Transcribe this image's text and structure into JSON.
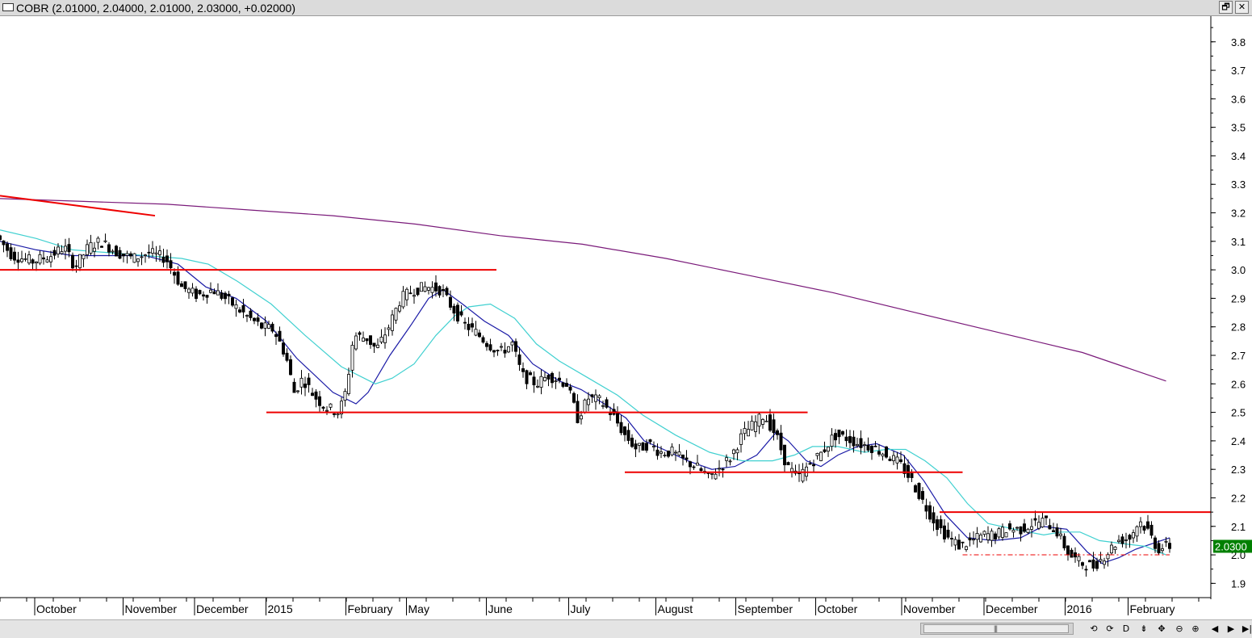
{
  "window": {
    "title": "COBR (2.01000, 2.04000, 2.01000, 2.03000, +0.02000)",
    "restore_icon": "restore-icon",
    "close_icon": "close-icon",
    "restore_glyph": "🗗",
    "close_glyph": "✕"
  },
  "colors": {
    "up_fill": "#ffffff",
    "down_fill": "#000000",
    "candle_stroke": "#000000",
    "ma_short": "#1a1aa6",
    "ma_medium": "#40d0d0",
    "ma_long": "#7a1a7a",
    "trendline": "#ee0000",
    "last_price_bg": "#008000",
    "last_price_text": "#ffffff"
  },
  "scrollbar": {
    "buttons": [
      {
        "name": "prev-page-button",
        "glyph": "⟲"
      },
      {
        "name": "next-page-button",
        "glyph": "⟳"
      },
      {
        "name": "daily-button",
        "glyph": "D"
      },
      {
        "name": "cursor-button",
        "glyph": "⇟"
      },
      {
        "name": "pan-button",
        "glyph": "✥"
      },
      {
        "name": "zoom-out-button",
        "glyph": "⊖"
      },
      {
        "name": "zoom-in-button",
        "glyph": "⊕"
      },
      {
        "name": "scroll-left-button",
        "glyph": "◀"
      },
      {
        "name": "scroll-right-button",
        "glyph": "▶"
      },
      {
        "name": "scroll-end-button",
        "glyph": "▶|"
      }
    ],
    "thumb_grip": "|||"
  },
  "chart_data": {
    "type": "candlestick",
    "symbol": "COBR",
    "ylim": [
      1.85,
      3.89
    ],
    "x_range": [
      0,
      100
    ],
    "y_ticks": [
      1.9,
      2.0,
      2.1,
      2.2,
      2.3,
      2.4,
      2.5,
      2.6,
      2.7,
      2.8,
      2.9,
      3.0,
      3.1,
      3.2,
      3.3,
      3.4,
      3.5,
      3.6,
      3.7,
      3.8
    ],
    "last_price": {
      "label": "2.0300",
      "value": 2.03
    },
    "x_labels": [
      {
        "label": "October",
        "x": 3.0
      },
      {
        "label": "November",
        "x": 10.3
      },
      {
        "label": "December",
        "x": 16.2
      },
      {
        "label": "2015",
        "x": 22.1
      },
      {
        "label": "February",
        "x": 28.7
      },
      {
        "label": "May",
        "x": 33.7
      },
      {
        "label": "June",
        "x": 40.3
      },
      {
        "label": "July",
        "x": 47.1
      },
      {
        "label": "August",
        "x": 54.3
      },
      {
        "label": "September",
        "x": 60.9
      },
      {
        "label": "October",
        "x": 67.5
      },
      {
        "label": "November",
        "x": 74.6
      },
      {
        "label": "December",
        "x": 81.4
      },
      {
        "label": "2016",
        "x": 88.1
      },
      {
        "label": "February",
        "x": 93.3
      }
    ],
    "price_anchors": [
      [
        0,
        3.12
      ],
      [
        1.3,
        3.05
      ],
      [
        3.0,
        3.03
      ],
      [
        4.5,
        3.05
      ],
      [
        5.6,
        3.08
      ],
      [
        6.5,
        3.01
      ],
      [
        7.6,
        3.08
      ],
      [
        8.6,
        3.1
      ],
      [
        10.0,
        3.06
      ],
      [
        11.3,
        3.04
      ],
      [
        12.6,
        3.06
      ],
      [
        14.0,
        3.04
      ],
      [
        15.3,
        2.94
      ],
      [
        16.6,
        2.91
      ],
      [
        17.9,
        2.93
      ],
      [
        19.2,
        2.89
      ],
      [
        20.6,
        2.84
      ],
      [
        21.9,
        2.8
      ],
      [
        22.9,
        2.79
      ],
      [
        23.9,
        2.7
      ],
      [
        24.6,
        2.57
      ],
      [
        25.3,
        2.62
      ],
      [
        26.2,
        2.56
      ],
      [
        27.1,
        2.52
      ],
      [
        28.3,
        2.5
      ],
      [
        28.9,
        2.58
      ],
      [
        29.5,
        2.77
      ],
      [
        30.6,
        2.76
      ],
      [
        31.4,
        2.72
      ],
      [
        32.4,
        2.8
      ],
      [
        33.4,
        2.9
      ],
      [
        34.5,
        2.93
      ],
      [
        35.6,
        2.94
      ],
      [
        36.7,
        2.93
      ],
      [
        37.6,
        2.87
      ],
      [
        38.6,
        2.81
      ],
      [
        39.6,
        2.78
      ],
      [
        40.6,
        2.74
      ],
      [
        41.6,
        2.71
      ],
      [
        42.6,
        2.74
      ],
      [
        43.4,
        2.63
      ],
      [
        44.6,
        2.6
      ],
      [
        45.6,
        2.63
      ],
      [
        47.1,
        2.6
      ],
      [
        48.0,
        2.48
      ],
      [
        48.9,
        2.55
      ],
      [
        49.9,
        2.54
      ],
      [
        50.9,
        2.49
      ],
      [
        51.9,
        2.42
      ],
      [
        52.9,
        2.37
      ],
      [
        53.9,
        2.39
      ],
      [
        54.8,
        2.36
      ],
      [
        55.8,
        2.36
      ],
      [
        56.8,
        2.33
      ],
      [
        57.8,
        2.31
      ],
      [
        58.8,
        2.27
      ],
      [
        59.6,
        2.3
      ],
      [
        60.6,
        2.34
      ],
      [
        61.6,
        2.42
      ],
      [
        62.6,
        2.46
      ],
      [
        63.4,
        2.49
      ],
      [
        64.4,
        2.42
      ],
      [
        65.3,
        2.31
      ],
      [
        66.2,
        2.27
      ],
      [
        67.2,
        2.32
      ],
      [
        68.2,
        2.36
      ],
      [
        69.2,
        2.42
      ],
      [
        70.2,
        2.41
      ],
      [
        71.2,
        2.39
      ],
      [
        72.2,
        2.38
      ],
      [
        73.2,
        2.36
      ],
      [
        74.6,
        2.32
      ],
      [
        75.6,
        2.26
      ],
      [
        76.6,
        2.18
      ],
      [
        77.6,
        2.11
      ],
      [
        78.6,
        2.06
      ],
      [
        79.6,
        2.03
      ],
      [
        80.6,
        2.05
      ],
      [
        81.6,
        2.07
      ],
      [
        82.6,
        2.07
      ],
      [
        83.4,
        2.09
      ],
      [
        84.6,
        2.09
      ],
      [
        85.6,
        2.11
      ],
      [
        86.6,
        2.12
      ],
      [
        87.6,
        2.08
      ],
      [
        88.6,
        2.0
      ],
      [
        89.6,
        1.97
      ],
      [
        90.6,
        1.96
      ],
      [
        91.6,
        2.0
      ],
      [
        92.6,
        2.05
      ],
      [
        93.6,
        2.06
      ],
      [
        94.4,
        2.12
      ],
      [
        95.2,
        2.08
      ],
      [
        95.9,
        2.02
      ],
      [
        96.6,
        2.03
      ]
    ],
    "moving_averages": [
      {
        "key": "ma_short",
        "color": "#1a1aa6",
        "points": [
          [
            0,
            3.1
          ],
          [
            3,
            3.07
          ],
          [
            6,
            3.05
          ],
          [
            9,
            3.05
          ],
          [
            12,
            3.05
          ],
          [
            14.7,
            3.02
          ],
          [
            17,
            2.94
          ],
          [
            19.5,
            2.9
          ],
          [
            22,
            2.82
          ],
          [
            24.5,
            2.69
          ],
          [
            27.5,
            2.57
          ],
          [
            29.4,
            2.53
          ],
          [
            30.4,
            2.57
          ],
          [
            32.2,
            2.7
          ],
          [
            34,
            2.81
          ],
          [
            35.4,
            2.9
          ],
          [
            36.6,
            2.93
          ],
          [
            38.2,
            2.88
          ],
          [
            40,
            2.82
          ],
          [
            42,
            2.77
          ],
          [
            44,
            2.67
          ],
          [
            46.2,
            2.61
          ],
          [
            48,
            2.58
          ],
          [
            49.9,
            2.53
          ],
          [
            51.7,
            2.48
          ],
          [
            53.2,
            2.4
          ],
          [
            54.8,
            2.37
          ],
          [
            56.8,
            2.33
          ],
          [
            58.8,
            2.3
          ],
          [
            60.7,
            2.31
          ],
          [
            62.5,
            2.35
          ],
          [
            64.1,
            2.43
          ],
          [
            65.1,
            2.4
          ],
          [
            66.6,
            2.33
          ],
          [
            67.8,
            2.31
          ],
          [
            69.2,
            2.35
          ],
          [
            70.8,
            2.38
          ],
          [
            72.4,
            2.39
          ],
          [
            74.6,
            2.35
          ],
          [
            76.3,
            2.26
          ],
          [
            78.1,
            2.14
          ],
          [
            79.9,
            2.06
          ],
          [
            82.1,
            2.05
          ],
          [
            84.3,
            2.06
          ],
          [
            86.1,
            2.1
          ],
          [
            88.1,
            2.09
          ],
          [
            89.8,
            2.01
          ],
          [
            91.0,
            1.97
          ],
          [
            92.4,
            1.99
          ],
          [
            93.8,
            2.02
          ],
          [
            95.2,
            2.04
          ],
          [
            96.6,
            2.06
          ]
        ]
      },
      {
        "key": "ma_medium",
        "color": "#40d0d0",
        "points": [
          [
            0,
            3.14
          ],
          [
            3,
            3.11
          ],
          [
            6,
            3.07
          ],
          [
            9,
            3.06
          ],
          [
            12,
            3.05
          ],
          [
            15,
            3.04
          ],
          [
            17.2,
            3.02
          ],
          [
            19.6,
            2.96
          ],
          [
            22.4,
            2.88
          ],
          [
            25.2,
            2.77
          ],
          [
            28.2,
            2.66
          ],
          [
            31,
            2.6
          ],
          [
            32.4,
            2.62
          ],
          [
            34.2,
            2.67
          ],
          [
            36,
            2.77
          ],
          [
            37.6,
            2.84
          ],
          [
            38.7,
            2.87
          ],
          [
            40.5,
            2.88
          ],
          [
            42.5,
            2.83
          ],
          [
            44.3,
            2.74
          ],
          [
            46.2,
            2.68
          ],
          [
            48.6,
            2.62
          ],
          [
            51,
            2.56
          ],
          [
            53.1,
            2.49
          ],
          [
            55.8,
            2.42
          ],
          [
            58.6,
            2.36
          ],
          [
            61.3,
            2.33
          ],
          [
            63.8,
            2.33
          ],
          [
            65.6,
            2.35
          ],
          [
            67.1,
            2.38
          ],
          [
            69.2,
            2.38
          ],
          [
            71.4,
            2.36
          ],
          [
            73.2,
            2.37
          ],
          [
            74.8,
            2.37
          ],
          [
            76.4,
            2.33
          ],
          [
            78.2,
            2.27
          ],
          [
            79.9,
            2.18
          ],
          [
            81.6,
            2.11
          ],
          [
            83.8,
            2.09
          ],
          [
            86.2,
            2.07
          ],
          [
            87.6,
            2.08
          ],
          [
            89.2,
            2.08
          ],
          [
            90.8,
            2.05
          ],
          [
            92.6,
            2.04
          ],
          [
            94.6,
            2.03
          ],
          [
            96.3,
            2.0
          ]
        ]
      },
      {
        "key": "ma_long",
        "color": "#7a1a7a",
        "points": [
          [
            0,
            3.25
          ],
          [
            6.9,
            3.24
          ],
          [
            13.8,
            3.23
          ],
          [
            20.6,
            3.21
          ],
          [
            27.5,
            3.19
          ],
          [
            34.4,
            3.16
          ],
          [
            41.3,
            3.12
          ],
          [
            48.1,
            3.09
          ],
          [
            55,
            3.04
          ],
          [
            61.9,
            2.98
          ],
          [
            68.8,
            2.92
          ],
          [
            75.6,
            2.85
          ],
          [
            82.5,
            2.78
          ],
          [
            89.4,
            2.71
          ],
          [
            96.3,
            2.61
          ]
        ]
      }
    ],
    "trendlines": [
      {
        "start": [
          0,
          3.26
        ],
        "end": [
          12.8,
          3.19
        ],
        "style": "solid"
      },
      {
        "start": [
          0,
          3.0
        ],
        "end": [
          41.0,
          3.0
        ],
        "style": "solid"
      },
      {
        "start": [
          22.0,
          2.5
        ],
        "end": [
          66.7,
          2.5
        ],
        "style": "solid"
      },
      {
        "start": [
          51.6,
          2.29
        ],
        "end": [
          79.5,
          2.29
        ],
        "style": "solid"
      },
      {
        "start": [
          77.6,
          2.15
        ],
        "end": [
          100,
          2.15
        ],
        "style": "solid"
      },
      {
        "start": [
          79.5,
          2.0
        ],
        "end": [
          96.6,
          2.0
        ],
        "style": "dash-dot"
      }
    ]
  }
}
